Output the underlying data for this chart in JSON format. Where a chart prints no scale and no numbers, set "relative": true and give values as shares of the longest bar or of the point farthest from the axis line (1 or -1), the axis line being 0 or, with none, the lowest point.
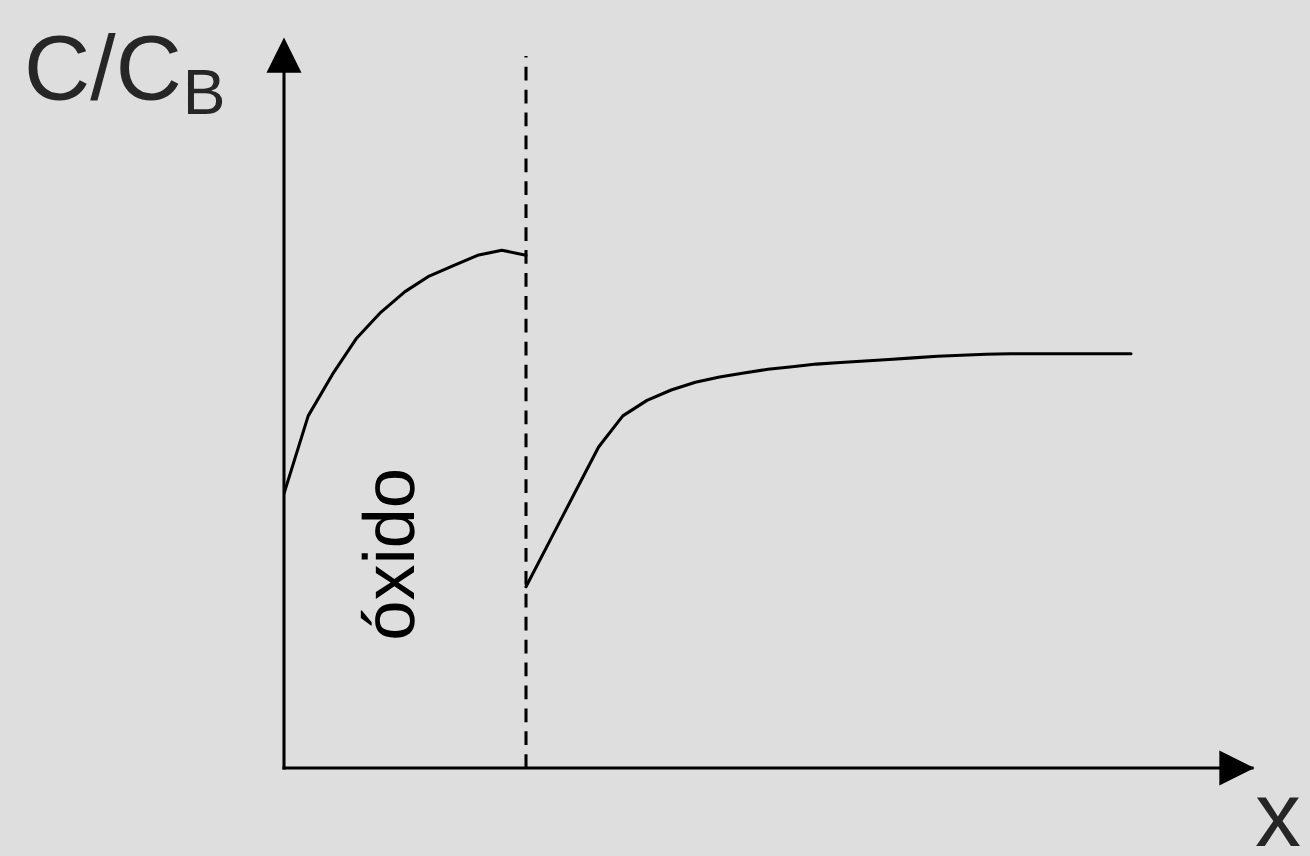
{
  "chart_data": {
    "type": "line",
    "relative": true,
    "xlabel": "x",
    "ylabel": "C/C$_{B}$",
    "annotations": [
      "óxido"
    ],
    "categories": [
      null,
      null,
      null,
      null,
      null,
      null,
      null,
      null,
      null,
      null,
      null,
      null,
      null,
      null,
      null,
      null,
      null,
      null,
      null,
      null,
      null,
      null,
      null,
      null,
      null,
      null,
      null,
      null,
      null,
      null,
      null,
      null,
      null,
      null,
      null,
      null,
      null,
      null,
      null,
      null,
      null
    ],
    "series": [
      {
        "color": "#000000",
        "values": [
          0.53,
          0.68,
          0.76,
          0.83,
          0.88,
          0.92,
          0.95,
          0.97,
          0.99,
          1.0,
          0.99,
          null,
          null,
          null,
          null,
          null,
          null,
          null,
          null,
          null,
          null,
          null,
          null,
          null,
          null,
          null,
          null,
          null,
          null,
          null,
          null,
          null,
          null,
          null,
          null,
          null,
          null,
          null,
          null,
          null,
          null
        ]
      },
      {
        "color": "#000000",
        "values": [
          null,
          null,
          null,
          null,
          null,
          null,
          null,
          null,
          null,
          null,
          0.35,
          0.44,
          0.53,
          0.62,
          0.68,
          0.71,
          0.73,
          0.745,
          0.755,
          0.763,
          0.77,
          0.775,
          0.78,
          0.783,
          0.786,
          0.789,
          0.792,
          0.795,
          0.797,
          0.799,
          0.8,
          0.8,
          0.8,
          0.8,
          0.8,
          0.8,
          null,
          null,
          null,
          null,
          null
        ]
      }
    ],
    "marker": "none",
    "line_style": "solid"
  }
}
